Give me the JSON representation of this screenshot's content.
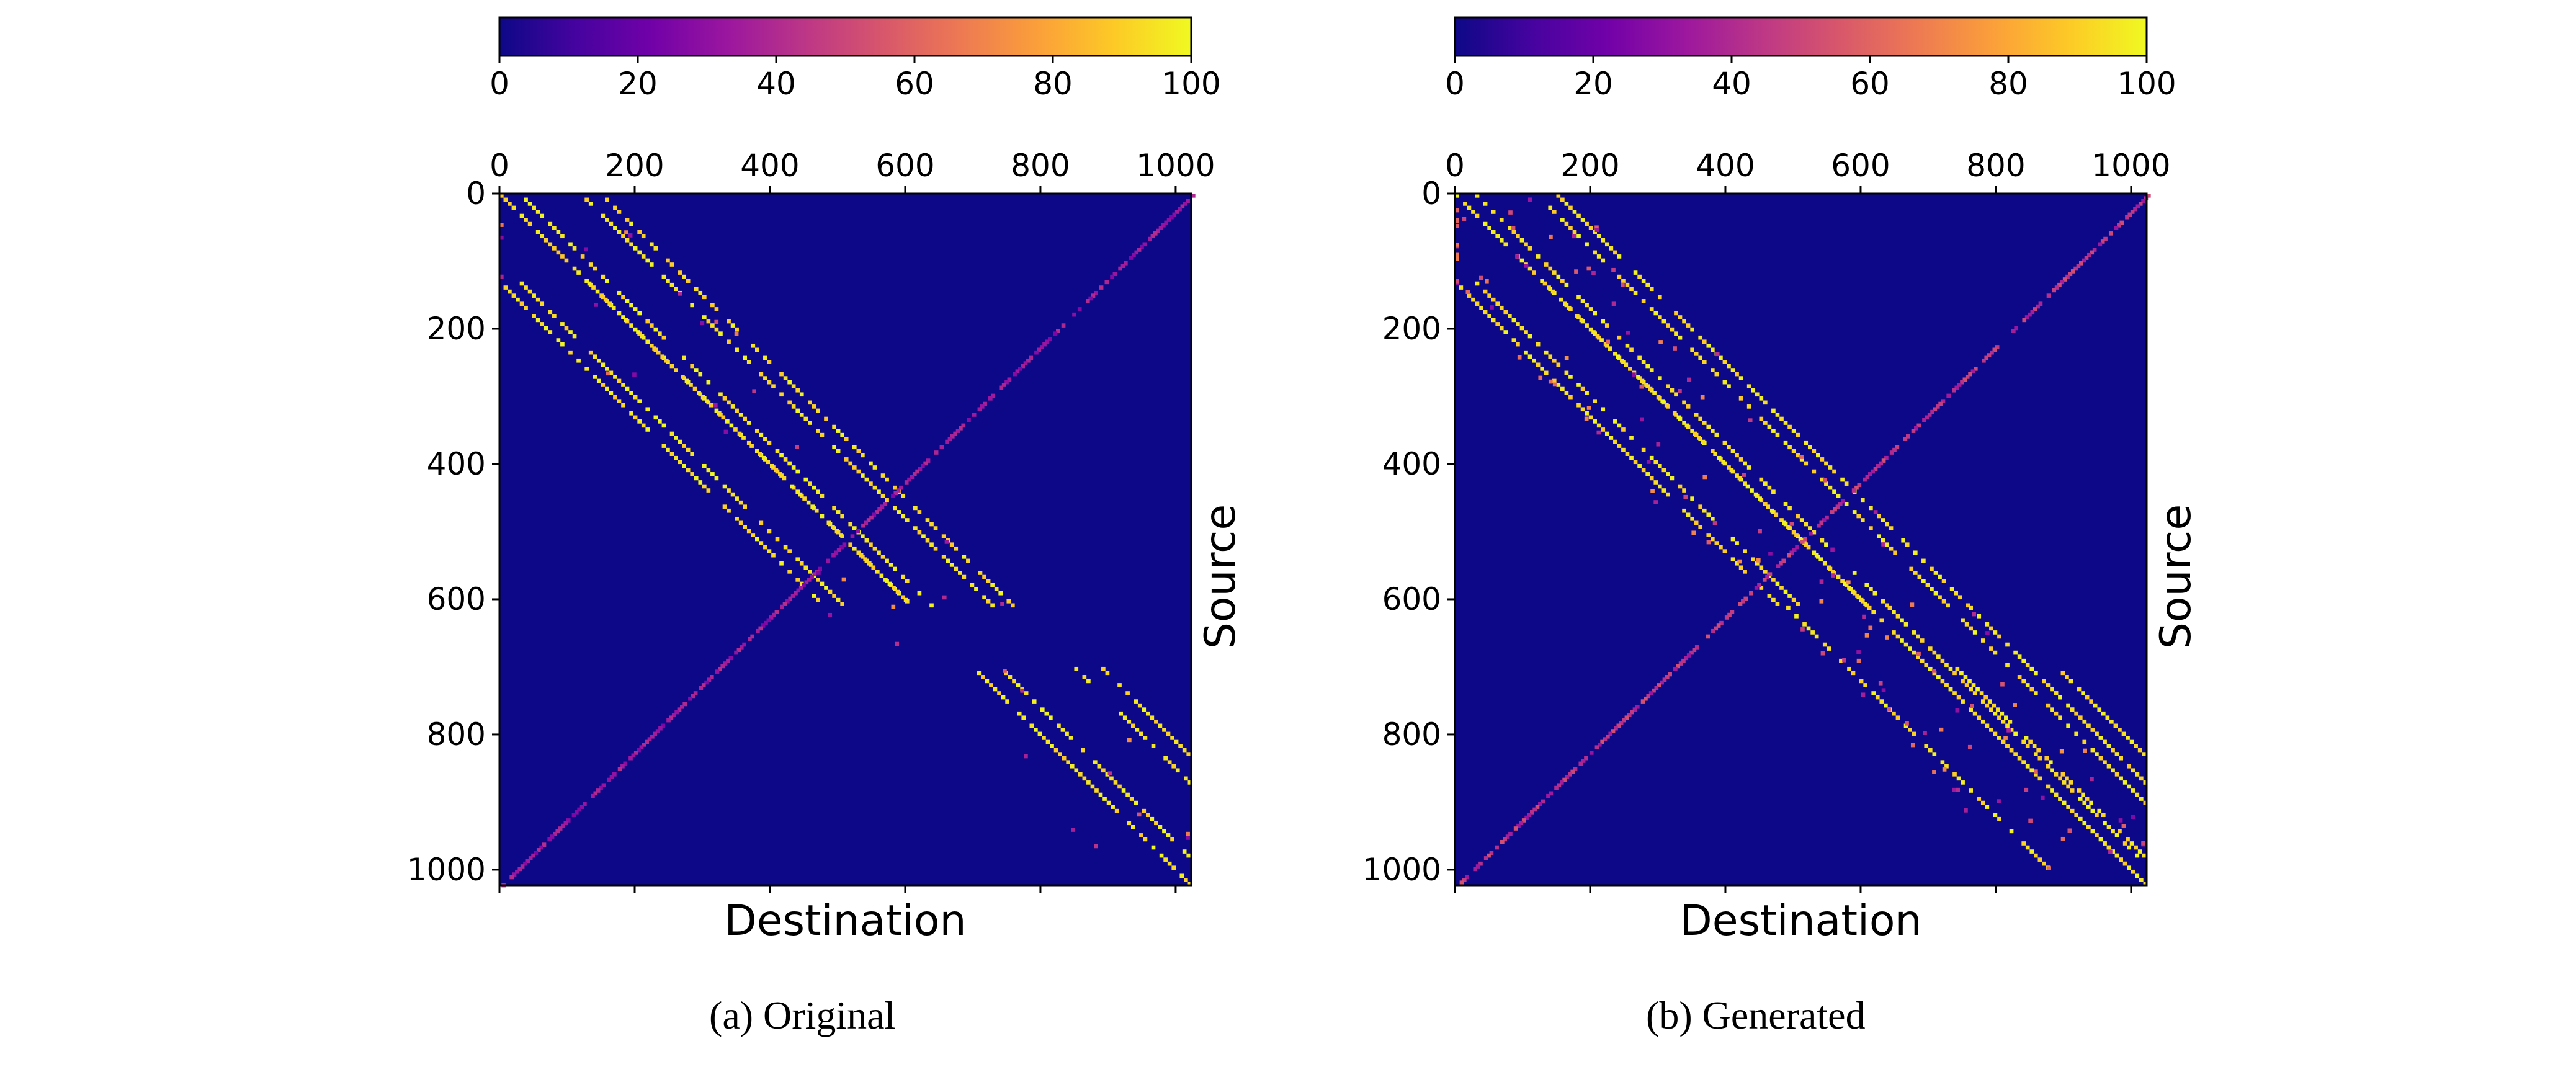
{
  "colormap": {
    "name": "plasma",
    "stops": [
      "#0d0887",
      "#46039f",
      "#7201a8",
      "#9c179e",
      "#bd3786",
      "#d8576b",
      "#ed7953",
      "#fb9f3a",
      "#fdca26",
      "#f0f921"
    ]
  },
  "chart_data": [
    {
      "type": "heatmap",
      "title": "",
      "xlabel": "Destination",
      "ylabel": "Source",
      "x_ticks": [
        "0",
        "200",
        "400",
        "600",
        "800",
        "1000"
      ],
      "y_ticks": [
        "0",
        "200",
        "400",
        "600",
        "800",
        "1000"
      ],
      "xlim": [
        0,
        1023
      ],
      "ylim": [
        0,
        1023
      ],
      "colorbar": {
        "range": [
          0,
          100
        ],
        "ticks": [
          "0",
          "20",
          "40",
          "60",
          "80",
          "100"
        ],
        "placement": "top"
      },
      "caption_tag": "(a)",
      "caption_text": "Original",
      "structure": {
        "upper_block": [
          0,
          610
        ],
        "lower_block": [
          700,
          1023
        ],
        "band_offsets_upper": [
          0,
          30,
          120,
          150
        ],
        "band_offsets_lower": [
          0,
          40,
          150,
          190
        ],
        "anti_diagonal_intensity": 35,
        "noise_level": 0.05
      }
    },
    {
      "type": "heatmap",
      "title": "",
      "xlabel": "Destination",
      "ylabel": "Source",
      "x_ticks": [
        "0",
        "200",
        "400",
        "600",
        "800",
        "1000"
      ],
      "y_ticks": [
        "0",
        "200",
        "400",
        "600",
        "800",
        "1000"
      ],
      "xlim": [
        0,
        1023
      ],
      "ylim": [
        0,
        1023
      ],
      "colorbar": {
        "range": [
          0,
          100
        ],
        "ticks": [
          "0",
          "20",
          "40",
          "60",
          "80",
          "100"
        ],
        "placement": "top"
      },
      "caption_tag": "(b)",
      "caption_text": "Generated",
      "structure": {
        "upper_block": [
          0,
          1023
        ],
        "lower_block": [
          700,
          1023
        ],
        "band_offsets_upper": [
          0,
          30,
          120,
          150
        ],
        "band_offsets_lower": [
          0,
          40,
          150,
          190
        ],
        "anti_diagonal_intensity": 45,
        "noise_level": 0.35
      }
    }
  ]
}
